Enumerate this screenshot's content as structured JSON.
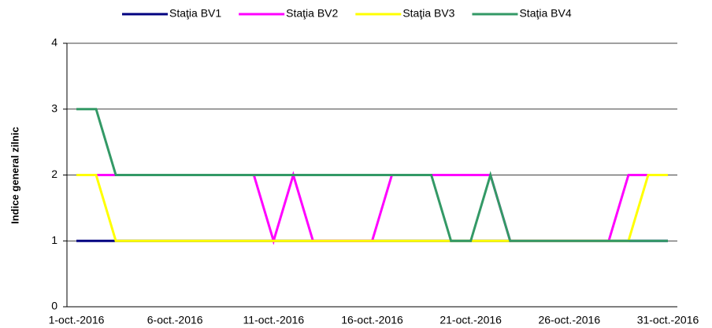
{
  "chart_data": {
    "type": "line",
    "y_label": "Indice general zilnic",
    "categories": [
      "1-oct.-2016",
      null,
      null,
      null,
      null,
      "6-oct.-2016",
      null,
      null,
      null,
      null,
      "11-oct.-2016",
      null,
      null,
      null,
      null,
      "16-oct.-2016",
      null,
      null,
      null,
      null,
      "21-oct.-2016",
      null,
      null,
      null,
      null,
      "26-oct.-2016",
      null,
      null,
      null,
      null,
      "31-oct.-2016"
    ],
    "series": [
      {
        "name": "Staţia BV1",
        "color": "#000080",
        "values": [
          1,
          1,
          1,
          1,
          1,
          1,
          1,
          1,
          1,
          1,
          1,
          1,
          1,
          1,
          1,
          1,
          1,
          1,
          1,
          1,
          1,
          1,
          1,
          1,
          1,
          1,
          1,
          1,
          1,
          1,
          1
        ]
      },
      {
        "name": "Staţia BV2",
        "color": "#ff00ff",
        "values": [
          2,
          2,
          2,
          2,
          2,
          2,
          2,
          2,
          2,
          2,
          1,
          2,
          1,
          1,
          1,
          1,
          2,
          2,
          2,
          2,
          2,
          2,
          1,
          1,
          1,
          1,
          1,
          1,
          2,
          2,
          2
        ]
      },
      {
        "name": "Staţia BV3",
        "color": "#ffff00",
        "values": [
          2,
          2,
          1,
          1,
          1,
          1,
          1,
          1,
          1,
          1,
          1,
          1,
          1,
          1,
          1,
          1,
          1,
          1,
          1,
          1,
          1,
          1,
          1,
          1,
          1,
          1,
          1,
          1,
          1,
          2,
          2
        ]
      },
      {
        "name": "Staţia BV4",
        "color": "#339966",
        "values": [
          3,
          3,
          2,
          2,
          2,
          2,
          2,
          2,
          2,
          2,
          2,
          2,
          2,
          2,
          2,
          2,
          2,
          2,
          2,
          1,
          1,
          2,
          1,
          1,
          1,
          1,
          1,
          1,
          1,
          1,
          1
        ]
      }
    ],
    "ylim": [
      0,
      4
    ],
    "yticks": [
      0,
      1,
      2,
      3,
      4
    ],
    "grid": true,
    "legend": "top"
  }
}
